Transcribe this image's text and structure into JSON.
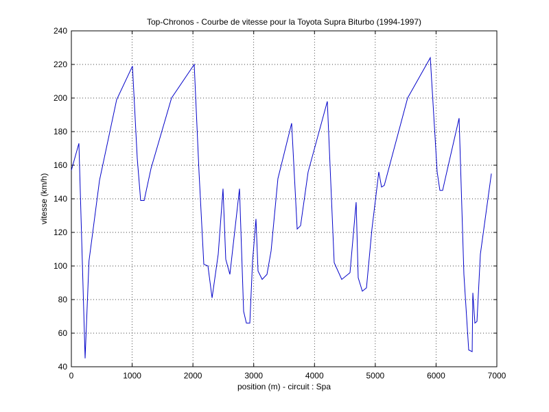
{
  "chart_data": {
    "type": "line",
    "title": "Top-Chronos - Courbe de vitesse pour la Toyota Supra Biturbo (1994-1997)",
    "x_label": "position (m) - circuit : Spa",
    "y_label": "vitesse (km/h)",
    "x": [
      0,
      124,
      226,
      290,
      463,
      745,
      1005,
      1084,
      1140,
      1197,
      1310,
      1648,
      2021,
      2100,
      2179,
      2247,
      2315,
      2416,
      2495,
      2540,
      2608,
      2766,
      2834,
      2879,
      2936,
      2981,
      3037,
      3071,
      3139,
      3218,
      3286,
      3398,
      3624,
      3715,
      3771,
      3895,
      4211,
      4324,
      4448,
      4584,
      4685,
      4719,
      4787,
      4855,
      4945,
      5058,
      5103,
      5148,
      5532,
      5905,
      6018,
      6063,
      6108,
      6164,
      6379,
      6458,
      6537,
      6594,
      6605,
      6639,
      6673,
      6729,
      6910
    ],
    "series": [
      {
        "color": "#0000c8",
        "values": [
          157,
          173,
          45,
          103,
          151,
          199,
          219,
          164,
          139,
          139,
          158,
          200,
          220,
          156,
          101,
          100,
          81,
          107,
          146,
          104,
          95,
          146,
          73,
          66,
          66,
          103,
          128,
          97,
          92,
          95,
          109,
          152,
          185,
          122,
          124,
          156,
          198,
          102,
          92,
          96,
          138,
          93,
          85,
          87,
          122,
          156,
          147,
          148,
          200,
          224,
          156,
          145,
          145,
          154,
          188,
          95,
          50,
          49,
          84,
          66,
          67,
          107,
          155
        ]
      }
    ],
    "xlim": [
      0,
      7000
    ],
    "xticks": [
      0,
      1000,
      2000,
      3000,
      4000,
      5000,
      6000,
      7000
    ],
    "ylim": [
      40,
      240
    ],
    "yticks": [
      40,
      60,
      80,
      100,
      120,
      140,
      160,
      180,
      200,
      220,
      240
    ],
    "grid": true
  }
}
